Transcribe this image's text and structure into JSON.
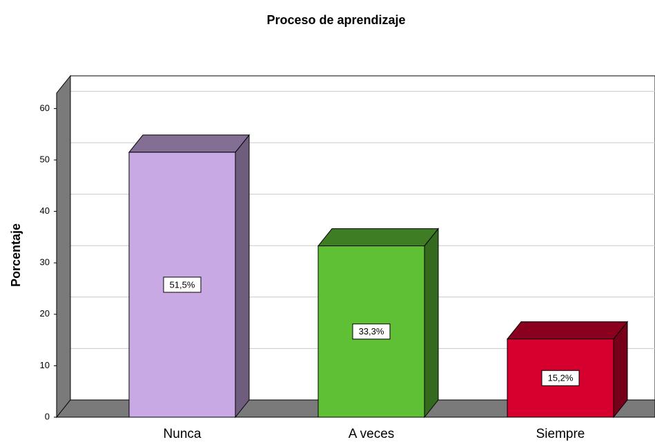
{
  "chart_data": {
    "type": "bar3d",
    "title": "Proceso de aprendizaje",
    "y_label": "Porcentaje",
    "categories": [
      "Nunca",
      "A veces",
      "Siempre"
    ],
    "values": [
      51.5,
      33.3,
      15.2
    ],
    "value_labels": [
      "51,5%",
      "33,3%",
      "15,2%"
    ],
    "colors": [
      "#c9a9e3",
      "#5fc036",
      "#d6002e"
    ],
    "ylim": [
      0,
      63
    ],
    "yticks": [
      0,
      10,
      20,
      30,
      40,
      50,
      60
    ],
    "grid": true
  }
}
